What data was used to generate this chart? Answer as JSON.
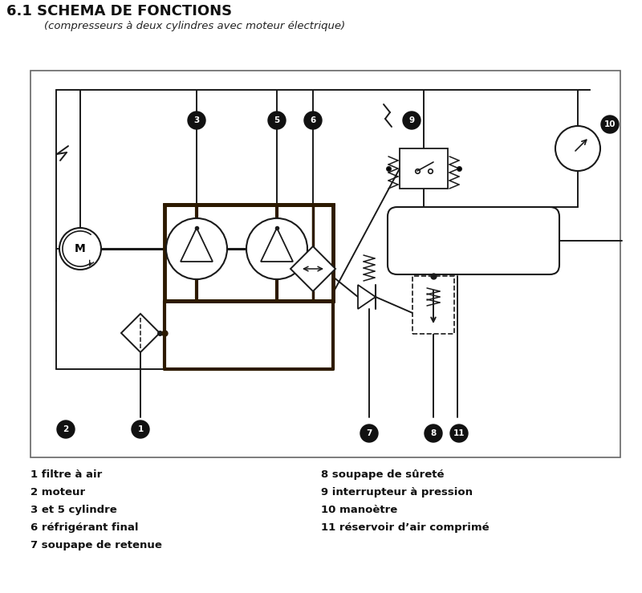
{
  "title": "6.1 SCHEMA DE FONCTIONS",
  "subtitle": "(compresseurs à deux cylindres avec moteur électrique)",
  "bg_color": "#ffffff",
  "line_color": "#1a1a1a",
  "dark_color": "#2d1a00",
  "legend_items_left": [
    "1 filtre à air",
    "2 moteur",
    "3 et 5 cylindre",
    "6 réfrigérant final",
    "7 soupape de retenue"
  ],
  "legend_items_right": [
    "8 soupape de sûreté",
    "9 interrupteur à pression",
    "10 manoètre",
    "11 réservoir d’air comprimé"
  ]
}
